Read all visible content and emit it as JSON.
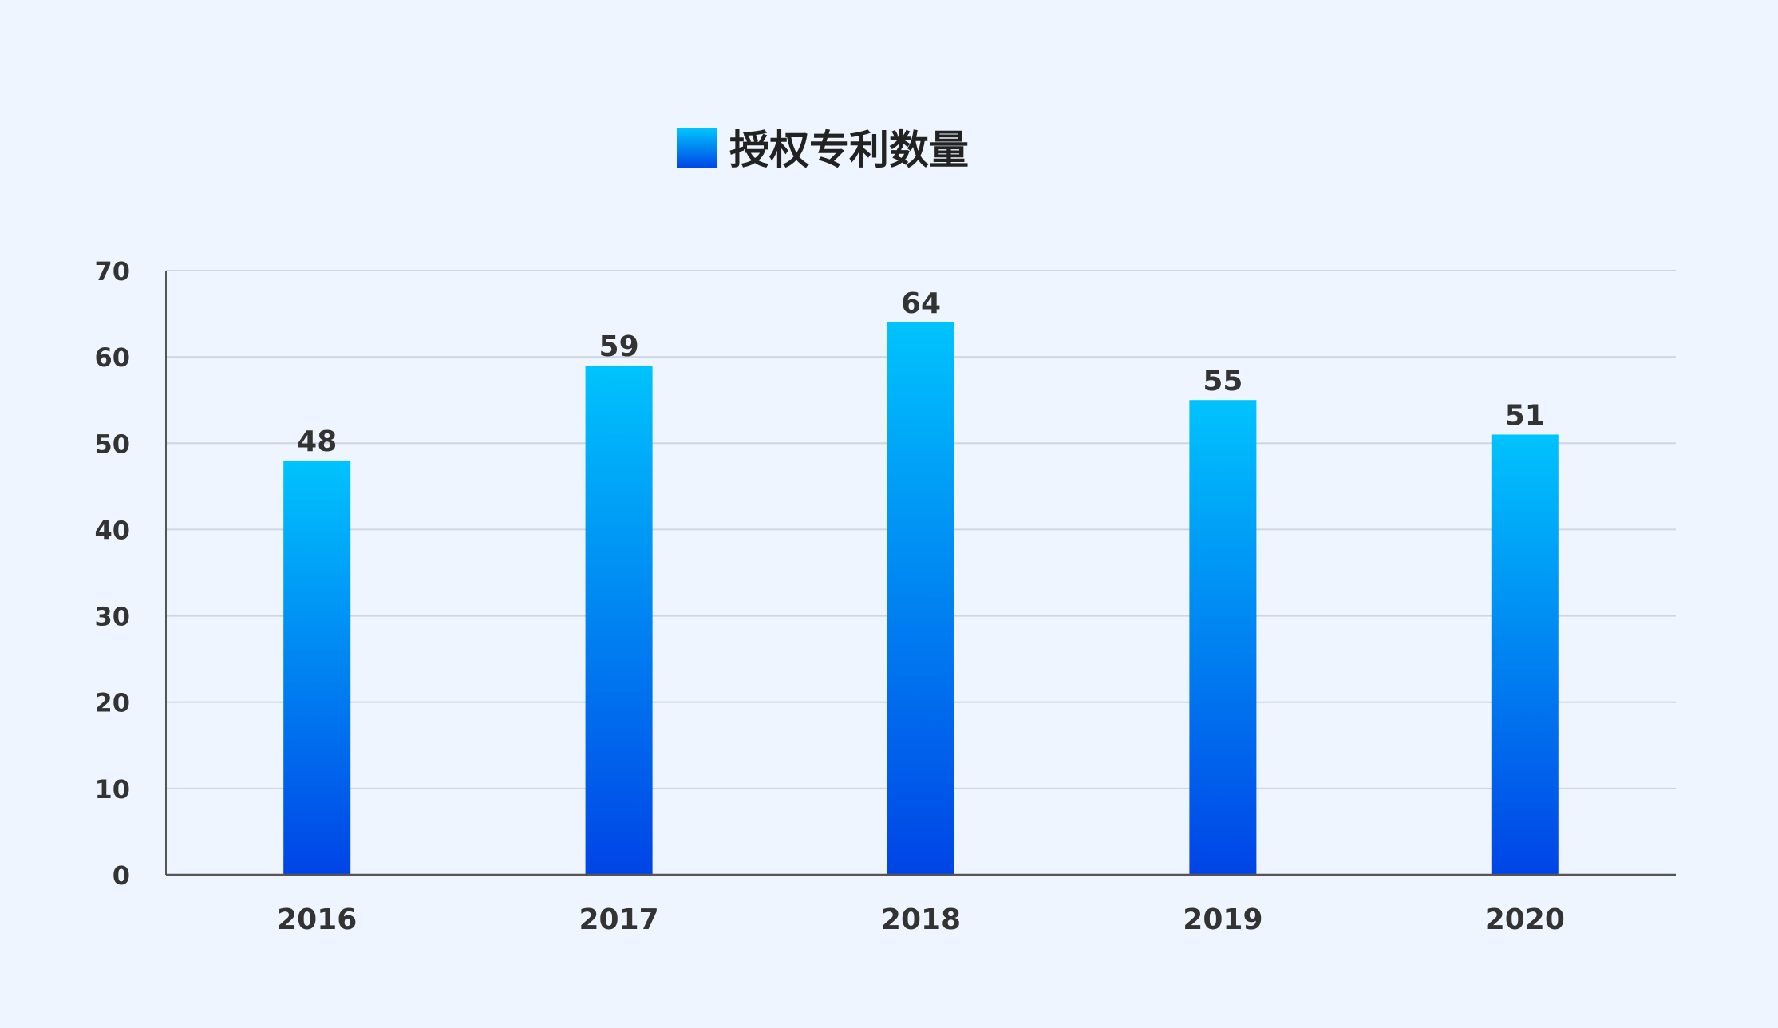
{
  "chart_data": {
    "type": "bar",
    "categories": [
      "2016",
      "2017",
      "2018",
      "2019",
      "2020"
    ],
    "series": [
      {
        "name": "授权专利数量",
        "values": [
          48,
          59,
          64,
          55,
          51
        ]
      }
    ],
    "title": "",
    "xlabel": "",
    "ylabel": "",
    "ylim": [
      0,
      70
    ],
    "yticks": [
      0,
      10,
      20,
      30,
      40,
      50,
      60,
      70
    ],
    "grid": true,
    "legend_position": "top-center",
    "data_labels": true
  },
  "colors": {
    "background": "#eff5fe",
    "bar_top": "#00c3fd",
    "bar_bottom": "#0044e6",
    "grid": "#cfd6e3",
    "axis": "#555555",
    "text": "#333333"
  }
}
